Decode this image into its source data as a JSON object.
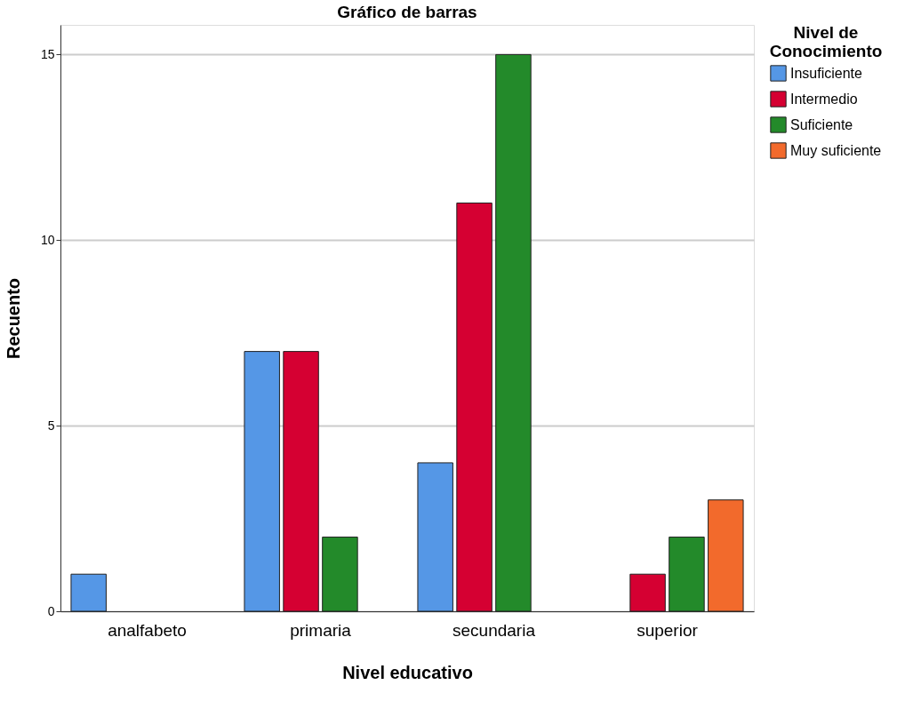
{
  "chart_data": {
    "type": "bar",
    "title": "Gráfico de barras",
    "xlabel": "Nivel educativo",
    "ylabel": "Recuento",
    "legend_title": "Nivel de Conocimiento",
    "categories": [
      "analfabeto",
      "primaria",
      "secundaria",
      "superior"
    ],
    "series": [
      {
        "name": "Insuficiente",
        "color": "#5597e6",
        "values": [
          1,
          7,
          4,
          null
        ]
      },
      {
        "name": "Intermedio",
        "color": "#d50032",
        "values": [
          null,
          7,
          11,
          1
        ]
      },
      {
        "name": "Suficiente",
        "color": "#238a2a",
        "values": [
          null,
          2,
          15,
          2
        ]
      },
      {
        "name": "Muy suficiente",
        "color": "#f26a2c",
        "values": [
          null,
          null,
          null,
          3
        ]
      }
    ],
    "ylim": [
      0,
      15.8
    ],
    "yticks": [
      0,
      5,
      10,
      15
    ],
    "grid": "y",
    "legend": "top right"
  }
}
